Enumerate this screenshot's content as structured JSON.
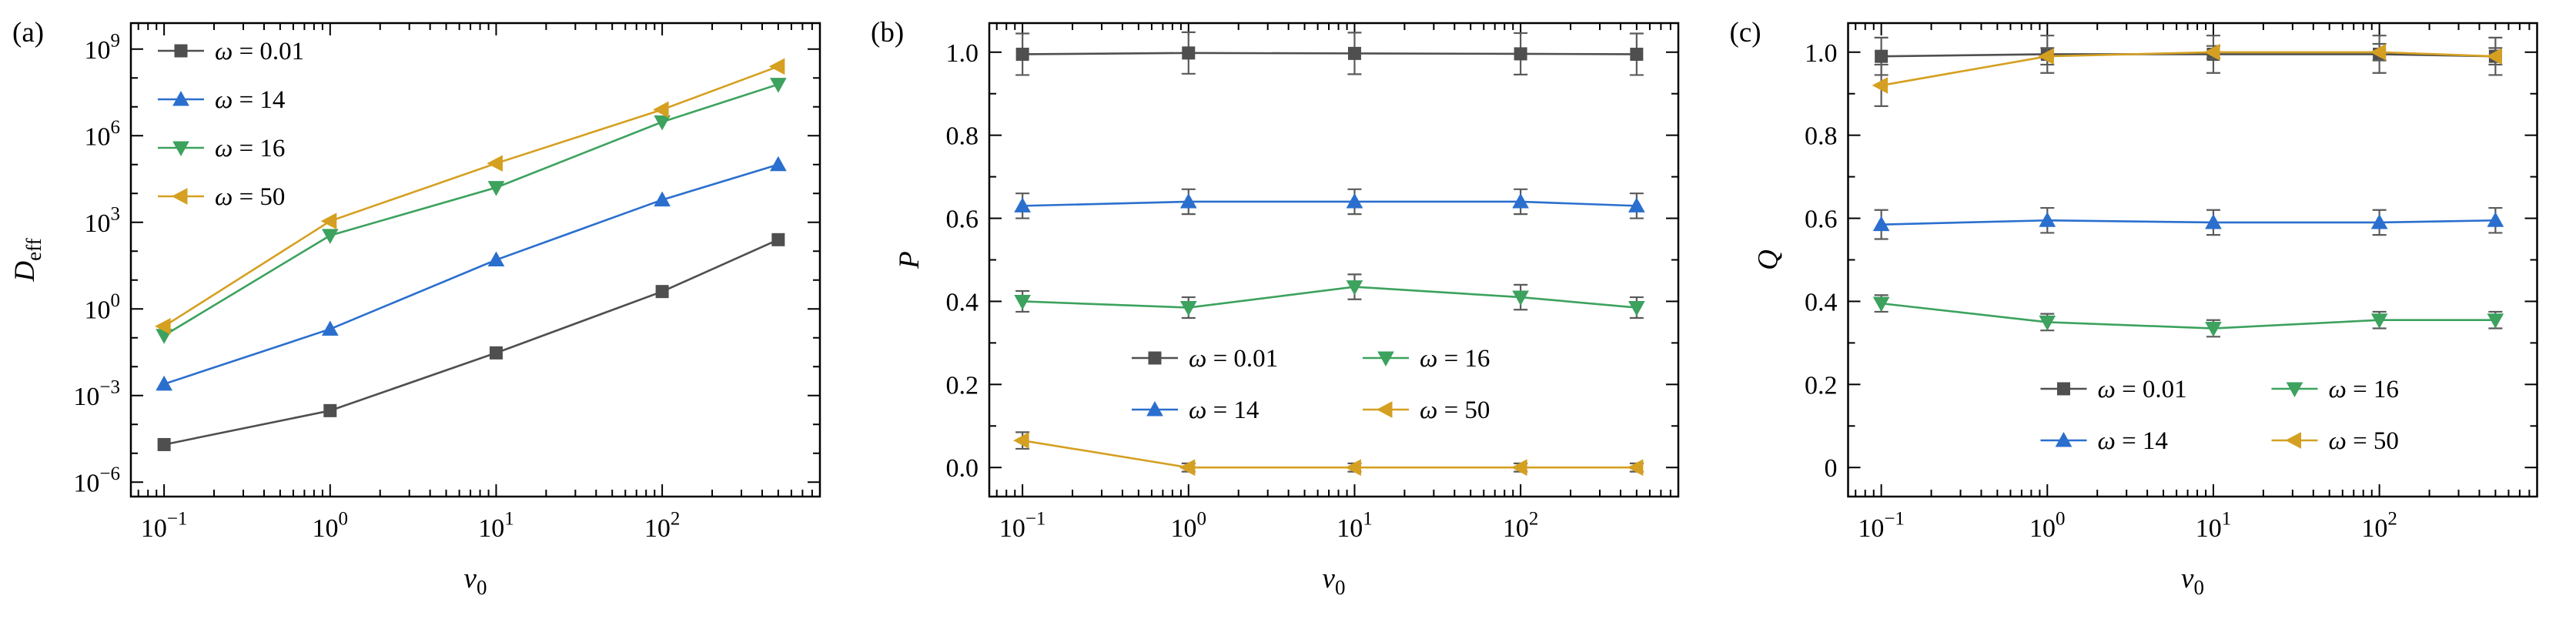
{
  "figure": {
    "background": "#ffffff",
    "text_color": "#000000",
    "axis_color": "#000000",
    "errorbar_color": "#5a5a5a"
  },
  "chart_data": [
    {
      "panel_label": "(a)",
      "type": "line",
      "xscale": "log",
      "yscale": "log",
      "x": [
        0.1,
        1,
        10,
        100,
        500
      ],
      "xlabel": {
        "main": "v",
        "sub": "0"
      },
      "ylabel": {
        "main": "D",
        "sub": "eff"
      },
      "xlim_log": [
        -1.2,
        2.95
      ],
      "ylim_log": [
        -6.5,
        9.9
      ],
      "xtick_exps": [
        -1,
        0,
        1,
        2
      ],
      "ytick_exps": [
        9,
        6,
        3,
        0,
        -3,
        -6
      ],
      "grid": false,
      "legend": {
        "position": "upper-left",
        "layout": "vertical"
      },
      "series": [
        {
          "name": "ω = 0.01",
          "marker": "square",
          "color": "#4f4f4f",
          "values": [
            2e-05,
            0.0003,
            0.03,
            4,
            250
          ]
        },
        {
          "name": "ω = 14",
          "marker": "triangle-up",
          "color": "#2a6fce",
          "values": [
            0.0025,
            0.2,
            50,
            6000,
            100000
          ]
        },
        {
          "name": "ω = 16",
          "marker": "triangle-down",
          "color": "#3ca25e",
          "values": [
            0.12,
            350,
            16000,
            3000000,
            60000000
          ]
        },
        {
          "name": "ω = 50",
          "marker": "triangle-left",
          "color": "#d5a021",
          "values": [
            0.25,
            1100,
            110000,
            8000000,
            250000000
          ]
        }
      ]
    },
    {
      "panel_label": "(b)",
      "type": "line",
      "xscale": "log",
      "yscale": "linear",
      "x": [
        0.1,
        1,
        10,
        100,
        500
      ],
      "xlabel": {
        "main": "v",
        "sub": "0"
      },
      "ylabel": {
        "main": "P",
        "sub": ""
      },
      "xlim_log": [
        -1.2,
        2.95
      ],
      "ylim": [
        -0.07,
        1.07
      ],
      "xtick_exps": [
        -1,
        0,
        1,
        2
      ],
      "yticks": [
        0,
        0.2,
        0.4,
        0.6,
        0.8,
        1.0
      ],
      "ytick_labels": [
        "0.0",
        "0.2",
        "0.4",
        "0.6",
        "0.8",
        "1.0"
      ],
      "grid": false,
      "legend": {
        "position": "lower-center",
        "layout": "grid",
        "columns": 2
      },
      "series": [
        {
          "name": "ω = 0.01",
          "marker": "square",
          "color": "#4f4f4f",
          "values": [
            0.995,
            0.998,
            0.997,
            0.996,
            0.995
          ],
          "errors": [
            0.05,
            0.05,
            0.05,
            0.05,
            0.05
          ]
        },
        {
          "name": "ω = 14",
          "marker": "triangle-up",
          "color": "#2a6fce",
          "values": [
            0.63,
            0.64,
            0.64,
            0.64,
            0.63
          ],
          "errors": [
            0.03,
            0.03,
            0.03,
            0.03,
            0.03
          ]
        },
        {
          "name": "ω = 16",
          "marker": "triangle-down",
          "color": "#3ca25e",
          "values": [
            0.4,
            0.385,
            0.435,
            0.41,
            0.385
          ],
          "errors": [
            0.025,
            0.025,
            0.03,
            0.03,
            0.025
          ]
        },
        {
          "name": "ω = 50",
          "marker": "triangle-left",
          "color": "#d5a021",
          "values": [
            0.065,
            0.0,
            0.0,
            0.0,
            0.0
          ],
          "errors": [
            0.02,
            0.01,
            0.01,
            0.01,
            0.01
          ]
        }
      ]
    },
    {
      "panel_label": "(c)",
      "type": "line",
      "xscale": "log",
      "yscale": "linear",
      "x": [
        0.1,
        1,
        10,
        100,
        500
      ],
      "xlabel": {
        "main": "v",
        "sub": "0"
      },
      "ylabel": {
        "main": "Q",
        "sub": ""
      },
      "xlim_log": [
        -1.2,
        2.95
      ],
      "ylim": [
        -0.07,
        1.07
      ],
      "xtick_exps": [
        -1,
        0,
        1,
        2
      ],
      "yticks": [
        0,
        0.2,
        0.4,
        0.6,
        0.8,
        1.0
      ],
      "ytick_labels": [
        "0",
        "0.2",
        "0.4",
        "0.6",
        "0.8",
        "1.0"
      ],
      "grid": false,
      "legend": {
        "position": "lower-right",
        "layout": "grid",
        "columns": 2
      },
      "series": [
        {
          "name": "ω = 0.01",
          "marker": "square",
          "color": "#4f4f4f",
          "values": [
            0.99,
            0.995,
            0.995,
            0.995,
            0.99
          ],
          "errors": [
            0.045,
            0.045,
            0.045,
            0.045,
            0.045
          ]
        },
        {
          "name": "ω = 14",
          "marker": "triangle-up",
          "color": "#2a6fce",
          "values": [
            0.585,
            0.595,
            0.59,
            0.59,
            0.595
          ],
          "errors": [
            0.035,
            0.03,
            0.03,
            0.03,
            0.03
          ]
        },
        {
          "name": "ω = 16",
          "marker": "triangle-down",
          "color": "#3ca25e",
          "values": [
            0.395,
            0.35,
            0.335,
            0.355,
            0.355
          ],
          "errors": [
            0.02,
            0.02,
            0.02,
            0.02,
            0.02
          ]
        },
        {
          "name": "ω = 50",
          "marker": "triangle-left",
          "color": "#d5a021",
          "values": [
            0.92,
            0.99,
            1.0,
            1.0,
            0.99
          ],
          "errors": [
            0.05,
            0.02,
            0.015,
            0.02,
            0.02
          ]
        }
      ]
    }
  ]
}
